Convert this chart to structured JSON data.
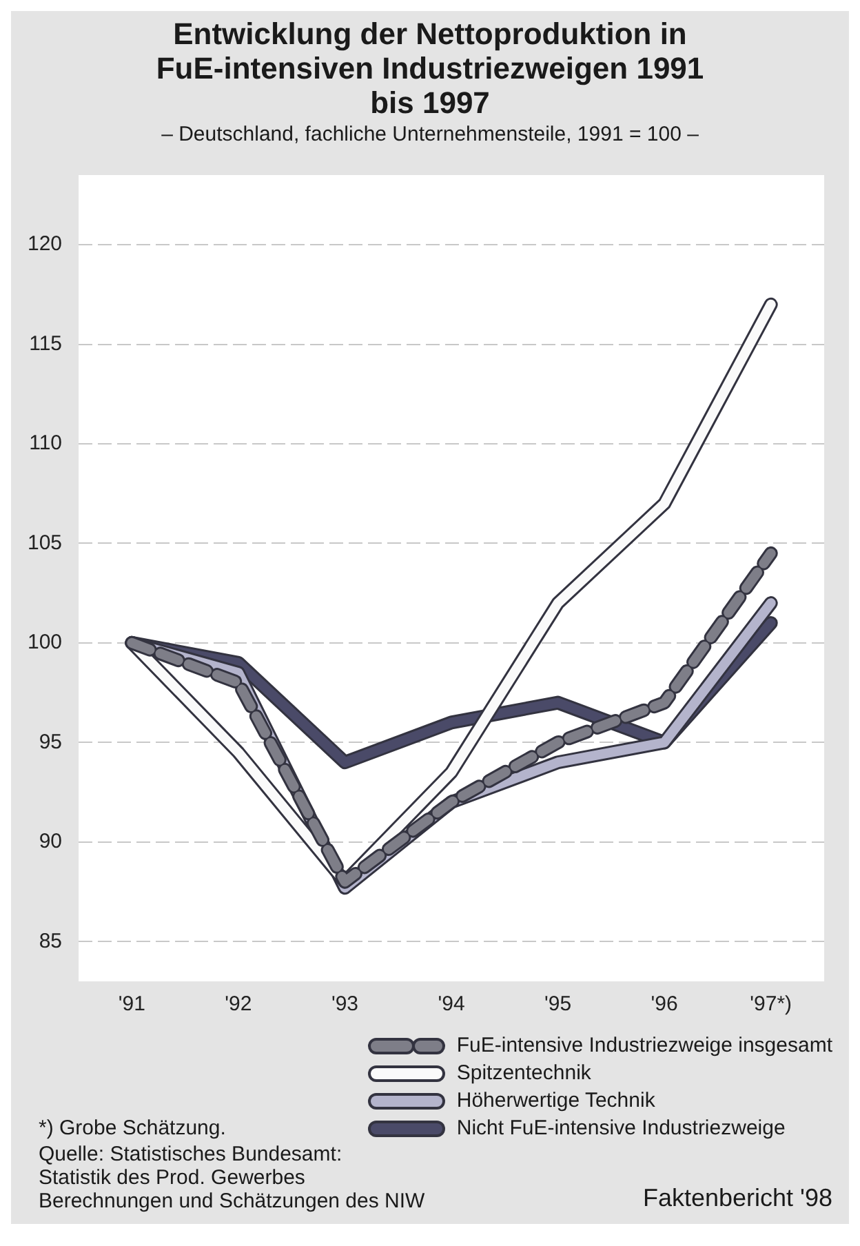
{
  "chart_data": {
    "type": "line",
    "title": "Entwicklung der Nettoproduktion in FuE-intensiven Industriezweigen 1991 bis 1997",
    "subtitle": "– Deutschland, fachliche Unternehmensteile, 1991 = 100 –",
    "categories": [
      "'91",
      "'92",
      "'93",
      "'94",
      "'95",
      "'96",
      "'97*)"
    ],
    "series": [
      {
        "name": "FuE-intensive Industriezweige insgesamt",
        "color": "#7e7e88",
        "line_style": "dashed",
        "values": [
          100,
          98,
          88,
          92,
          95,
          97,
          104.5
        ]
      },
      {
        "name": "Spitzentechnik",
        "color": "#fafafa",
        "values": [
          100,
          94.5,
          88,
          93.5,
          102,
          107,
          117
        ]
      },
      {
        "name": "Höherwertige Technik",
        "color": "#b4b4cc",
        "values": [
          100,
          98.5,
          87.7,
          92,
          94,
          95,
          102
        ]
      },
      {
        "name": "Nicht FuE-intensive Industriezweige",
        "color": "#4a4a68",
        "values": [
          100,
          99,
          94,
          96,
          97,
          95,
          101
        ]
      }
    ],
    "ylim": [
      83,
      123.5
    ],
    "yticks": [
      85,
      90,
      95,
      100,
      105,
      110,
      115,
      120
    ],
    "grid": "y",
    "legend": "bottom right",
    "marker": "none",
    "line_style": "solid",
    "annotations": [
      "*) Grobe Schätzung.",
      "Quelle: Statistisches Bundesamt:\nStatistik des Prod. Gewerbes\nBerechnungen und Schätzungen des NIW",
      "Faktenbericht '98"
    ]
  }
}
